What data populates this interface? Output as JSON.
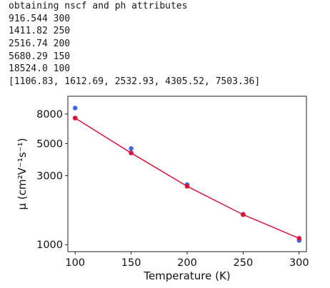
{
  "output": {
    "lines": [
      "obtaining nscf and ph attributes",
      "916.544 300",
      "1411.82 250",
      "2516.74 200",
      "5680.29 150",
      "18524.0 100",
      "[1106.83, 1612.69, 2532.93, 4305.52, 7503.36]"
    ]
  },
  "chart_data": {
    "type": "line",
    "title": "",
    "xlabel": "Temperature (K)",
    "ylabel": "μ (cm²V⁻¹s⁻¹)",
    "x_ticks": [
      "100",
      "150",
      "200",
      "250",
      "300"
    ],
    "y_ticks": [
      "1000",
      "3000",
      "5000",
      "8000"
    ],
    "xlim": [
      93.5,
      306.5
    ],
    "y_scale": "log",
    "ylim": [
      895,
      10620
    ],
    "grid": false,
    "legend": "none",
    "series": [
      {
        "type": "line+markers",
        "color": "#dc143c",
        "x": [
          100,
          150,
          200,
          250,
          300
        ],
        "y": [
          7503.36,
          4305.52,
          2532.93,
          1612.69,
          1106.83
        ]
      },
      {
        "type": "markers",
        "color": "#4169e1",
        "x": [
          100,
          150,
          200,
          250,
          300
        ],
        "y": [
          8800,
          4620,
          2600,
          1620,
          1070
        ]
      }
    ]
  }
}
